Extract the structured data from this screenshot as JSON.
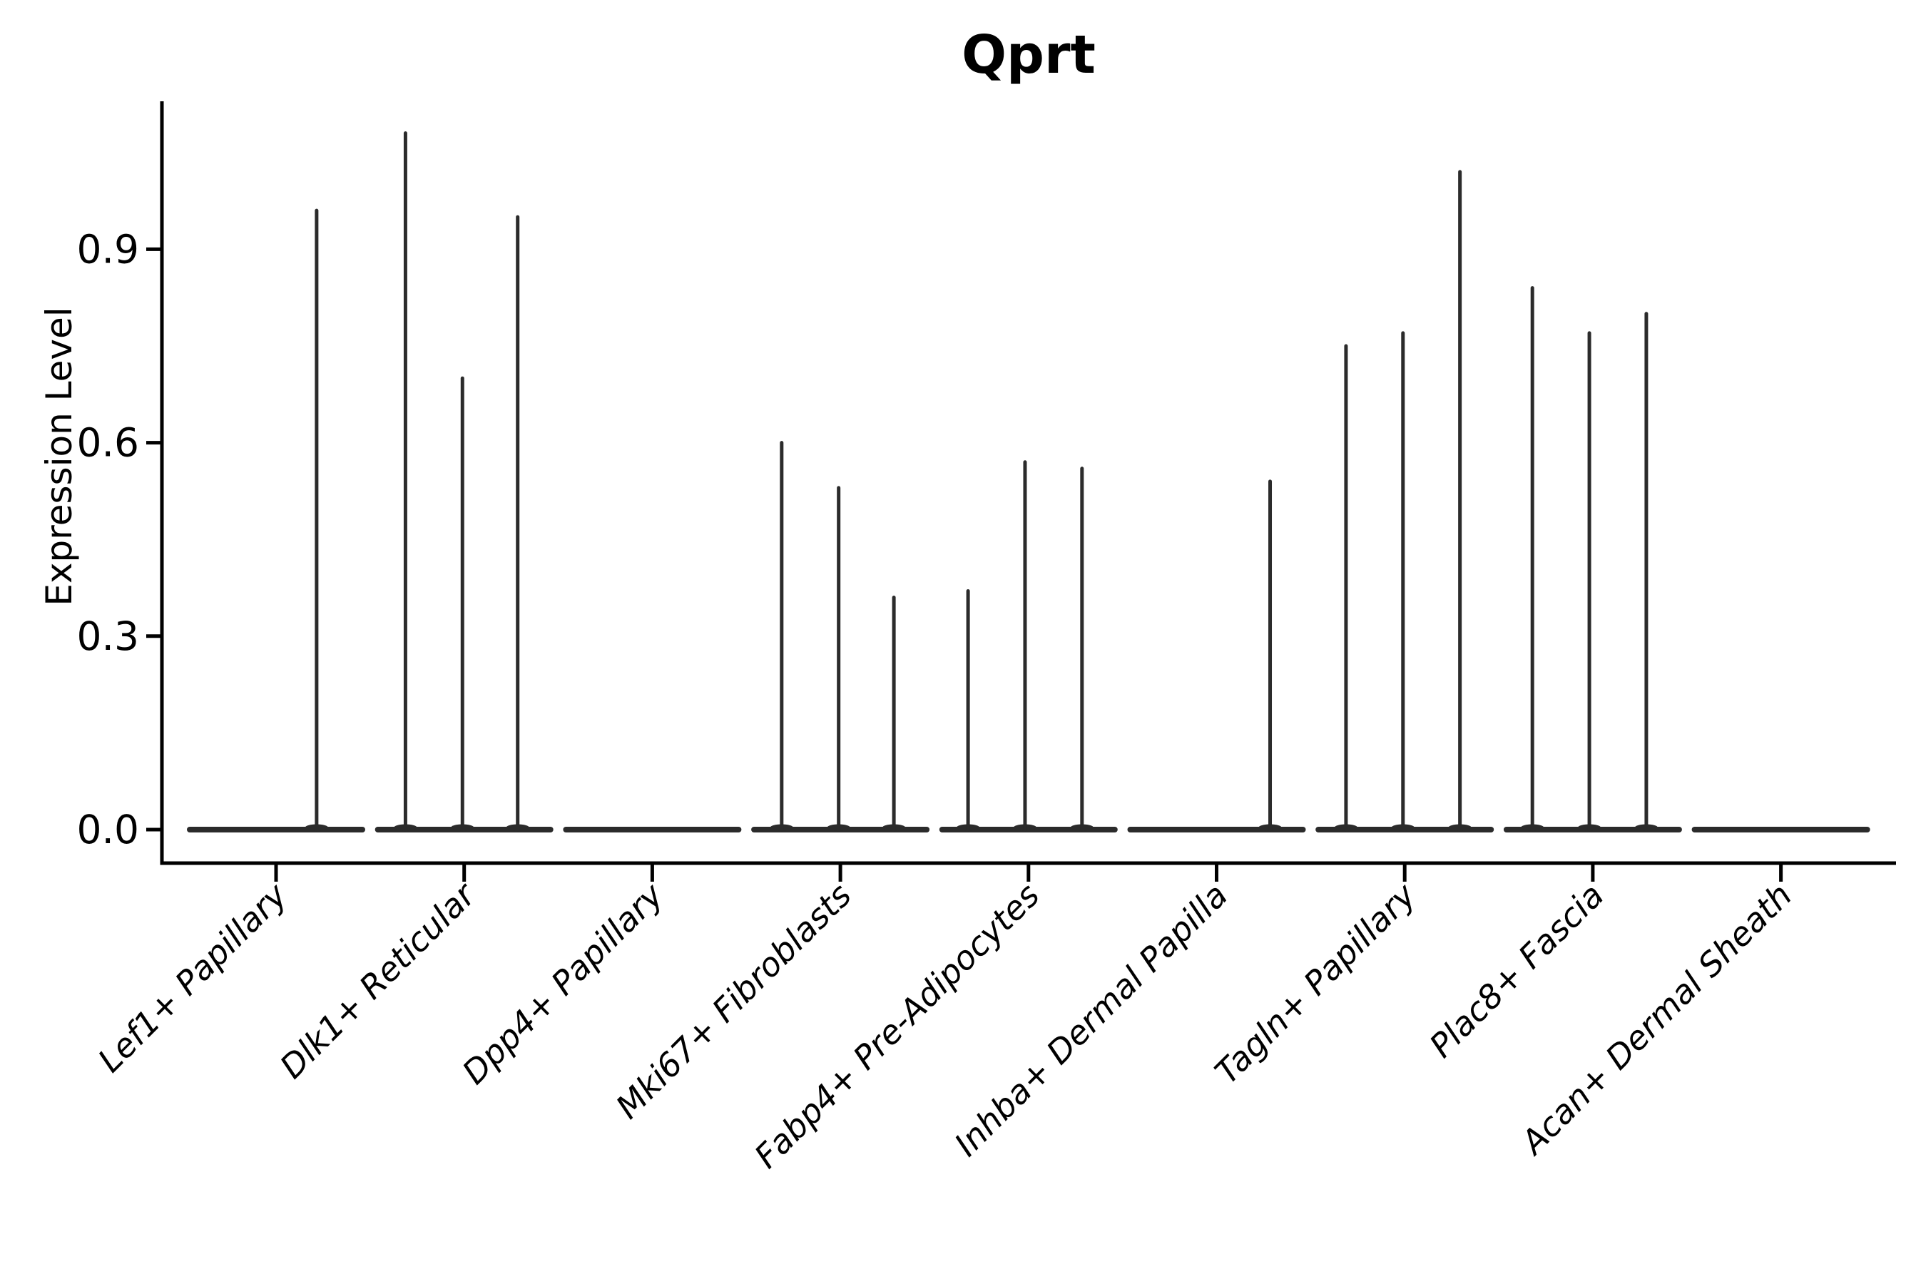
{
  "figure": {
    "background": "#ffffff"
  },
  "chart_data": {
    "type": "violin",
    "title": "Qprt",
    "xlabel": "",
    "ylabel": "Expression Level",
    "grid": false,
    "legend": "none",
    "ylim": [
      -0.05,
      1.13
    ],
    "yticks": [
      {
        "value": 0.0,
        "label": "0.0"
      },
      {
        "value": 0.3,
        "label": "0.3"
      },
      {
        "value": 0.6,
        "label": "0.6"
      },
      {
        "value": 0.9,
        "label": "0.9"
      }
    ],
    "x_tick_label_rotation_deg": 45,
    "x_tick_label_style": "italic",
    "categories": [
      "Lef1+ Papillary",
      "Dlk1+ Reticular",
      "Dpp4+ Papillary",
      "Mki67+ Fibroblasts",
      "Fabp4+ Pre-Adipocytes",
      "Inhba+ Dermal Papilla",
      "Tagln+ Papillary",
      "Plac8+ Fascia",
      "Acan+ Dermal Sheath"
    ],
    "violins": [
      {
        "category": "Lef1+ Papillary",
        "baseline_value": 0.0,
        "spikes": [
          {
            "pos": 0.735,
            "value": 0.96
          }
        ]
      },
      {
        "category": "Dlk1+ Reticular",
        "baseline_value": 0.0,
        "spikes": [
          {
            "pos": 0.16,
            "value": 1.08
          },
          {
            "pos": 0.49,
            "value": 0.7
          },
          {
            "pos": 0.81,
            "value": 0.95
          }
        ]
      },
      {
        "category": "Dpp4+ Papillary",
        "baseline_value": 0.0,
        "spikes": []
      },
      {
        "category": "Mki67+ Fibroblasts",
        "baseline_value": 0.0,
        "spikes": [
          {
            "pos": 0.16,
            "value": 0.6
          },
          {
            "pos": 0.49,
            "value": 0.53
          },
          {
            "pos": 0.81,
            "value": 0.36
          }
        ]
      },
      {
        "category": "Fabp4+ Pre-Adipocytes",
        "baseline_value": 0.0,
        "spikes": [
          {
            "pos": 0.15,
            "value": 0.37
          },
          {
            "pos": 0.48,
            "value": 0.57
          },
          {
            "pos": 0.81,
            "value": 0.56
          }
        ]
      },
      {
        "category": "Inhba+ Dermal Papilla",
        "baseline_value": 0.0,
        "spikes": [
          {
            "pos": 0.81,
            "value": 0.54
          }
        ]
      },
      {
        "category": "Tagln+ Papillary",
        "baseline_value": 0.0,
        "spikes": [
          {
            "pos": 0.16,
            "value": 0.75
          },
          {
            "pos": 0.49,
            "value": 0.77
          },
          {
            "pos": 0.82,
            "value": 1.02
          }
        ]
      },
      {
        "category": "Plac8+ Fascia",
        "baseline_value": 0.0,
        "spikes": [
          {
            "pos": 0.15,
            "value": 0.84
          },
          {
            "pos": 0.48,
            "value": 0.77
          },
          {
            "pos": 0.81,
            "value": 0.8
          }
        ]
      },
      {
        "category": "Acan+ Dermal Sheath",
        "baseline_value": 0.0,
        "spikes": []
      }
    ],
    "colors": {
      "violin": "#2b2b2b",
      "axis": "#000000",
      "text": "#000000",
      "background": "#ffffff"
    }
  }
}
